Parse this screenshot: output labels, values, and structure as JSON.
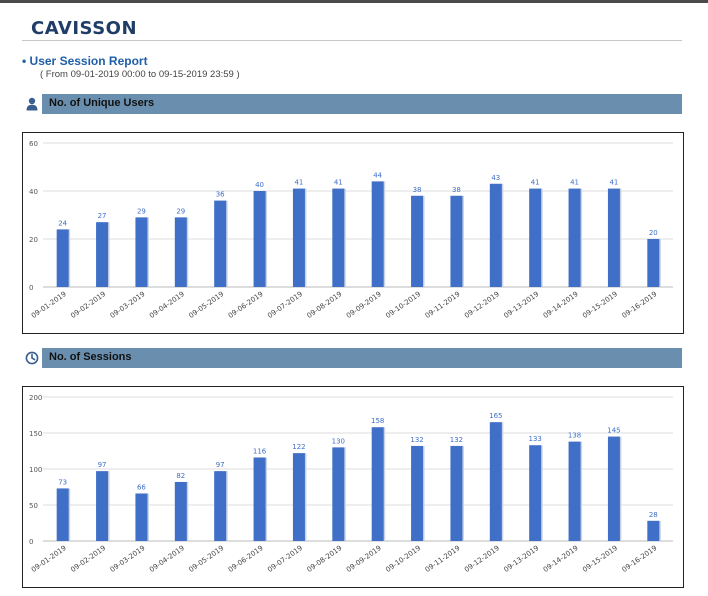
{
  "header": {
    "logo": "CAVISSON",
    "report_title": "User Session Report",
    "report_range": "( From 09-01-2019 00:00 to 09-15-2019 23:59 )"
  },
  "colors": {
    "logo": "#1f3d66",
    "section_bar": "#6a8fae",
    "bar": "#3f6fc7",
    "data_label": "#3f6fc7"
  },
  "sections": [
    {
      "title": "No. of Unique Users",
      "icon": "user-icon"
    },
    {
      "title": "No. of Sessions",
      "icon": "session-icon"
    }
  ],
  "chart_data": [
    {
      "type": "bar",
      "categories": [
        "09-01-2019",
        "09-02-2019",
        "09-03-2019",
        "09-04-2019",
        "09-05-2019",
        "09-06-2019",
        "09-07-2019",
        "09-08-2019",
        "09-09-2019",
        "09-10-2019",
        "09-11-2019",
        "09-12-2019",
        "09-13-2019",
        "09-14-2019",
        "09-15-2019",
        "09-16-2019"
      ],
      "values": [
        24,
        27,
        29,
        29,
        36,
        40,
        41,
        41,
        44,
        38,
        38,
        43,
        41,
        41,
        41,
        20
      ],
      "ylim": [
        0,
        60
      ],
      "yticks": [
        0,
        20,
        40,
        60
      ],
      "grid": true,
      "data_labels": true
    },
    {
      "type": "bar",
      "categories": [
        "09-01-2019",
        "09-02-2019",
        "09-03-2019",
        "09-04-2019",
        "09-05-2019",
        "09-06-2019",
        "09-07-2019",
        "09-08-2019",
        "09-09-2019",
        "09-10-2019",
        "09-11-2019",
        "09-12-2019",
        "09-13-2019",
        "09-14-2019",
        "09-15-2019",
        "09-16-2019"
      ],
      "values": [
        73,
        97,
        66,
        82,
        97,
        116,
        122,
        130,
        158,
        132,
        132,
        165,
        133,
        138,
        145,
        28
      ],
      "ylim": [
        0,
        200
      ],
      "yticks": [
        0,
        50,
        100,
        150,
        200
      ],
      "grid": true,
      "data_labels": true
    }
  ]
}
